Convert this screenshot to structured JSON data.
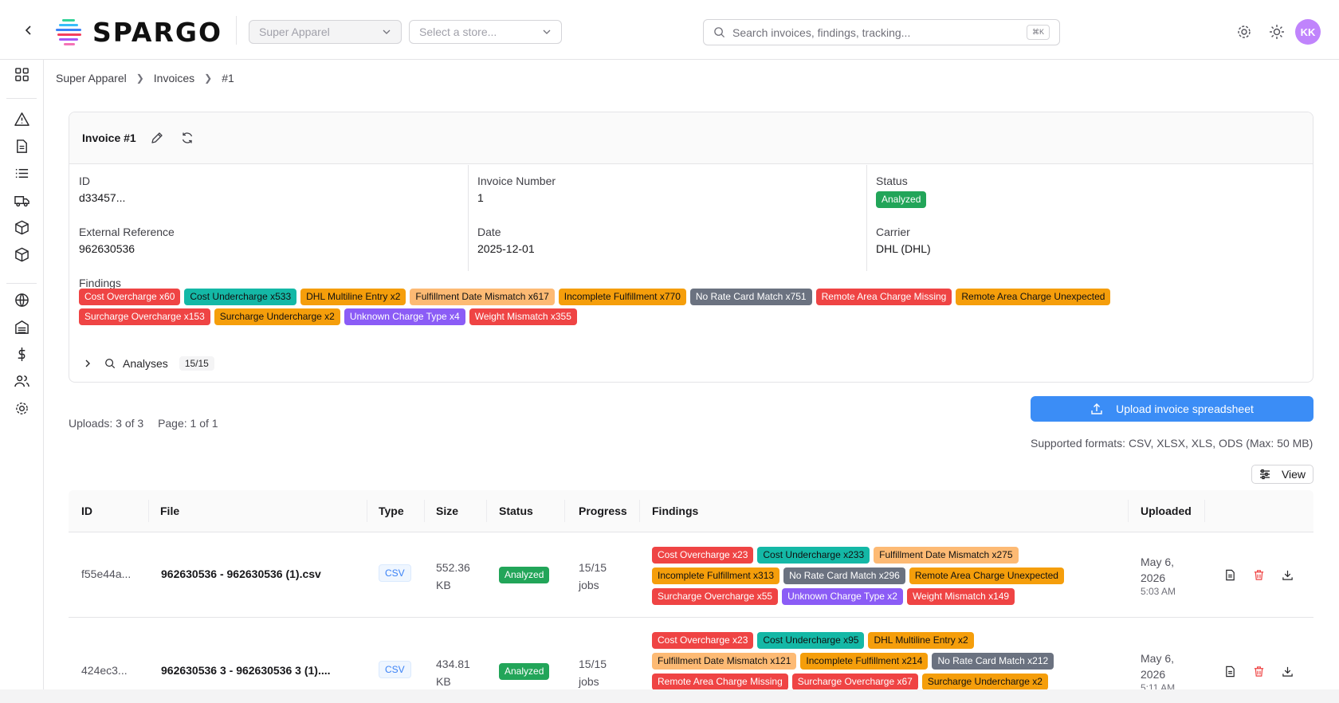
{
  "header": {
    "logo_text": "SPARGO",
    "org_select": "Super Apparel",
    "store_select_placeholder": "Select a store...",
    "search_placeholder": "Search invoices, findings, tracking...",
    "search_shortcut": "⌘K",
    "avatar_initials": "KK"
  },
  "breadcrumb": [
    "Super Apparel",
    "Invoices",
    "#1"
  ],
  "invoice": {
    "title": "Invoice #1",
    "id_label": "ID",
    "id_value": "d33457...",
    "number_label": "Invoice Number",
    "number_value": "1",
    "status_label": "Status",
    "status_value": "Analyzed",
    "extref_label": "External Reference",
    "extref_value": "962630536",
    "date_label": "Date",
    "date_value": "2025-12-01",
    "carrier_label": "Carrier",
    "carrier_value": "DHL (DHL)",
    "findings_label": "Findings",
    "findings_row1": [
      "Cost Overcharge x60",
      "Cost Undercharge x533",
      "DHL Multiline Entry x2",
      "Fulfillment Date Mismatch x617",
      "Incomplete Fulfillment x770",
      "No Rate Card Match x751",
      "Remote Area Charge Missing",
      "Remote Area Charge Unexpected"
    ],
    "findings_row2": [
      "Surcharge Overcharge x153",
      "Surcharge Undercharge x2",
      "Unknown Charge Type x4",
      "Weight Mismatch x355"
    ],
    "analyses_label": "Analyses",
    "analyses_count": "15/15"
  },
  "uploads": {
    "count_text": "Uploads: 3 of 3",
    "page_text": "Page: 1 of 1",
    "upload_button": "Upload invoice spreadsheet",
    "formats_text": "Supported formats: CSV, XLSX, XLS, ODS (Max: 50 MB)",
    "view_button": "View"
  },
  "table": {
    "columns": [
      "ID",
      "File",
      "Type",
      "Size",
      "Status",
      "Progress",
      "Findings",
      "Uploaded"
    ],
    "rows": [
      {
        "id": "f55e44a...",
        "file": "962630536 - 962630536 (1).csv",
        "type": "CSV",
        "size_1": "552.36",
        "size_2": "KB",
        "status": "Analyzed",
        "progress_1": "15/15",
        "progress_2": "jobs",
        "findings_r1": [
          "Cost Overcharge x23",
          "Cost Undercharge x233",
          "Fulfillment Date Mismatch x275"
        ],
        "findings_r2": [
          "Incomplete Fulfillment x313",
          "No Rate Card Match x296",
          "Remote Area Charge Unexpected"
        ],
        "findings_r3": [
          "Surcharge Overcharge x55",
          "Unknown Charge Type x2",
          "Weight Mismatch x149"
        ],
        "uploaded_1": "May 6,",
        "uploaded_2": "2026",
        "uploaded_time": "5:03 AM"
      },
      {
        "id": "424ec3...",
        "file": "962630536 3 - 962630536 3 (1)....",
        "type": "CSV",
        "size_1": "434.81",
        "size_2": "KB",
        "status": "Analyzed",
        "progress_1": "15/15",
        "progress_2": "jobs",
        "findings_r1": [
          "Cost Overcharge x23",
          "Cost Undercharge x95",
          "DHL Multiline Entry x2"
        ],
        "findings_r2": [
          "Fulfillment Date Mismatch x121",
          "Incomplete Fulfillment x214",
          "No Rate Card Match x212"
        ],
        "findings_r3": [
          "Remote Area Charge Missing",
          "Surcharge Overcharge x67",
          "Surcharge Undercharge x2"
        ],
        "uploaded_1": "May 6,",
        "uploaded_2": "2026",
        "uploaded_time": "5:11 AM"
      }
    ]
  },
  "colors": {
    "red": "#ef4444",
    "teal": "#14b8a6",
    "orange": "#f59e0b",
    "peach": "#fdba74",
    "gray": "#6b7280",
    "purple": "#8b5cf6",
    "green": "#22a559",
    "primary": "#3b8df6"
  }
}
